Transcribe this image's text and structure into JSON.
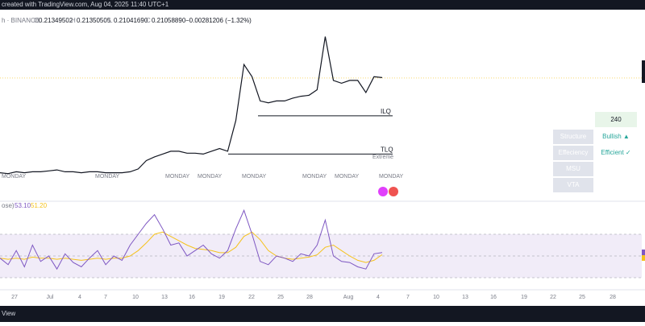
{
  "header": {
    "text": "created with TradingView.com, Aug 04, 2025 11:40 UTC+1"
  },
  "legend": {
    "symbol": "h · BINANCE",
    "o_label": "O",
    "open": "0.21349502",
    "h_label": "H",
    "high": "0.21350505",
    "l_label": "L",
    "low": "0.21041690",
    "c_label": "C",
    "close": "0.21058890",
    "change": "−0.00281206 (−1.32%)"
  },
  "price_chart": {
    "ylim": [
      0.1,
      0.277
    ],
    "values": [
      0.109,
      0.108,
      0.11,
      0.109,
      0.11,
      0.11,
      0.111,
      0.112,
      0.11,
      0.11,
      0.109,
      0.11,
      0.11,
      0.109,
      0.109,
      0.109,
      0.11,
      0.113,
      0.122,
      0.126,
      0.129,
      0.132,
      0.132,
      0.13,
      0.13,
      0.129,
      0.132,
      0.135,
      0.132,
      0.165,
      0.225,
      0.212,
      0.186,
      0.184,
      0.186,
      0.186,
      0.189,
      0.191,
      0.192,
      0.198,
      0.255,
      0.208,
      0.205,
      0.208,
      0.208,
      0.195,
      0.212,
      0.211
    ],
    "current_price": 0.2106,
    "levels": [
      {
        "label": "ILQ",
        "value": 0.17
      },
      {
        "label": "TLQ",
        "value": 0.129
      }
    ],
    "extreme_label": "Extreme",
    "session_labels": [
      "MONDAY",
      "MONDAY",
      "MONDAY",
      "MONDAY",
      "MONDAY",
      "MONDAY",
      "MONDAY",
      "MONDAY"
    ]
  },
  "rsi_panel": {
    "legend_prefix": "ose)",
    "rsi_label": "53.10",
    "ma_label": "51.20",
    "ylim": [
      20,
      95
    ],
    "bands": [
      70,
      50,
      30
    ],
    "rsi": [
      48,
      42,
      55,
      40,
      60,
      45,
      50,
      38,
      52,
      44,
      40,
      48,
      55,
      42,
      50,
      46,
      60,
      70,
      80,
      88,
      75,
      60,
      62,
      50,
      55,
      60,
      52,
      48,
      55,
      75,
      92,
      70,
      45,
      42,
      50,
      48,
      45,
      52,
      50,
      60,
      83,
      50,
      45,
      44,
      40,
      38,
      52,
      53.1
    ],
    "ma": [
      48,
      47,
      48,
      47,
      49,
      48,
      48,
      47,
      48,
      47,
      46,
      47,
      48,
      47,
      48,
      48,
      50,
      55,
      62,
      70,
      72,
      68,
      64,
      60,
      57,
      56,
      55,
      53,
      53,
      58,
      68,
      72,
      65,
      55,
      50,
      48,
      47,
      48,
      49,
      51,
      58,
      60,
      55,
      50,
      46,
      44,
      46,
      51.2
    ]
  },
  "x_axis": [
    "27",
    "Jul",
    "4",
    "7",
    "10",
    "13",
    "16",
    "19",
    "22",
    "25",
    "28",
    "Aug",
    "4",
    "7",
    "10",
    "13",
    "16",
    "19",
    "22",
    "25",
    "28"
  ],
  "table": {
    "timeframe": "240",
    "rows": [
      [
        "Structure",
        "Bullish ▲"
      ],
      [
        "Effeciency",
        "Efficient ✓"
      ],
      [
        "MSU",
        ""
      ],
      [
        "VTA",
        ""
      ]
    ]
  },
  "footer": {
    "text": "View"
  }
}
